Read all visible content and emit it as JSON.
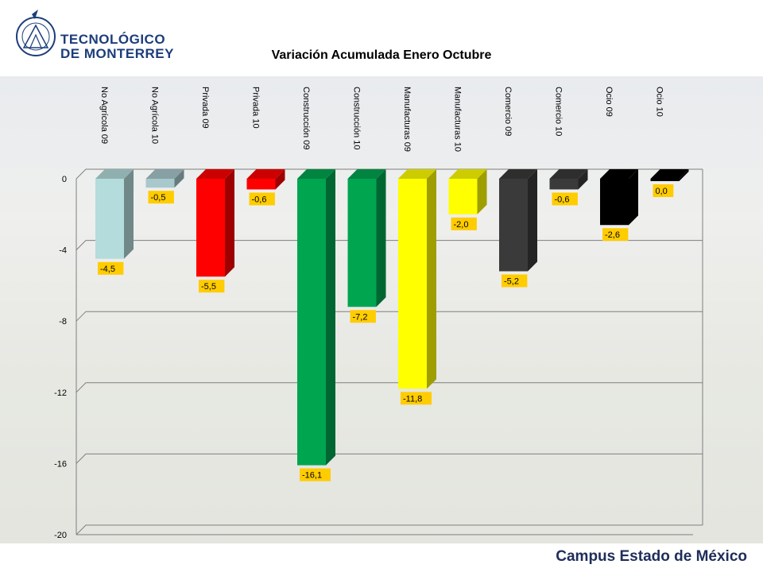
{
  "brand": {
    "name_line1": "TECNOLÓGICO",
    "name_line2": "DE MONTERREY",
    "footer": "Campus Estado de México"
  },
  "colors": {
    "floor_lines": "#7f7f7f",
    "label_box": "#ffcc00"
  },
  "chart_data": {
    "type": "bar",
    "title": "Variación Acumulada Enero Octubre",
    "categories": [
      "No Agrícola 09",
      "No Agrícola 10",
      "Privada 09",
      "Privada 10",
      "Construcción 09",
      "Construcción 10",
      "Manufacturas 09",
      "Manufacturas 10",
      "Comercio 09",
      "Comercio 10",
      "Ocio 09",
      "Ocio 10"
    ],
    "values": [
      -4.5,
      -0.5,
      -5.5,
      -0.6,
      -16.1,
      -7.2,
      -11.8,
      -2.0,
      -5.2,
      -0.6,
      -2.6,
      0.0
    ],
    "data_labels": [
      "-4,5",
      "-0,5",
      "-5,5",
      "-0,6",
      "-16,1",
      "-7,2",
      "-11,8",
      "-2,0",
      "-5,2",
      "-0,6",
      "-2,6",
      "0,0"
    ],
    "bar_colors": [
      "#b4dcdc",
      "#a8c8cc",
      "#ff0000",
      "#ff0000",
      "#00a550",
      "#00a550",
      "#ffff00",
      "#ffff00",
      "#3a3a3a",
      "#3a3a3a",
      "#000000",
      "#000000"
    ],
    "yticks": [
      "0",
      "-4",
      "-8",
      "-12",
      "-16",
      "-20"
    ],
    "ytick_values": [
      0,
      -4,
      -8,
      -12,
      -16,
      -20
    ],
    "ylim": [
      -20,
      0
    ],
    "xlabel": "",
    "ylabel": "",
    "grid": true,
    "style": "3d"
  }
}
